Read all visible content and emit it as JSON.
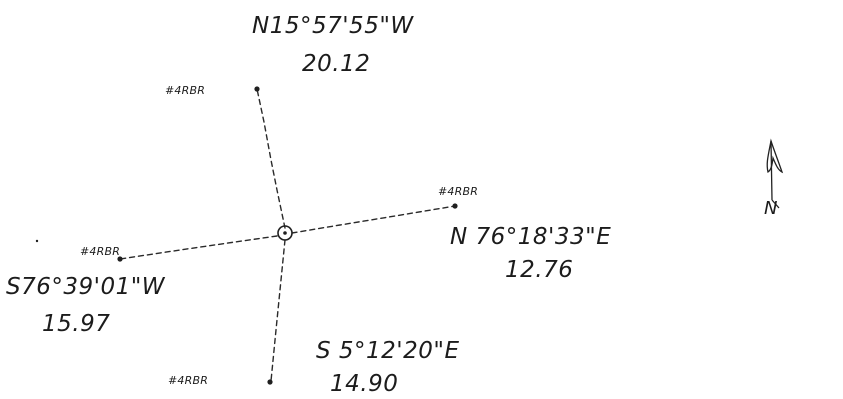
{
  "diagram": {
    "north_arrow": {
      "letter": "N",
      "icon": "north-arrow-icon"
    },
    "center": {
      "icon": "center-point-circle-icon"
    },
    "ties": [
      {
        "id": "north",
        "point_label": "#4RBR",
        "bearing": "N15°57'55\"W",
        "distance": "20.12"
      },
      {
        "id": "east",
        "point_label": "#4RBR",
        "bearing": "N 76°18'33\"E",
        "distance": "12.76"
      },
      {
        "id": "west",
        "point_label": "#4RBR",
        "bearing": "S76°39'01\"W",
        "distance": "15.97"
      },
      {
        "id": "south",
        "point_label": "#4RBR",
        "bearing": "S 5°12'20\"E",
        "distance": "14.90"
      }
    ]
  }
}
